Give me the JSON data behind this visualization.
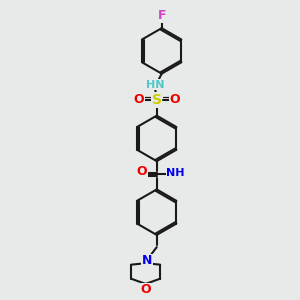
{
  "bg_color": "#e8eaea",
  "bond_color": "#1a1a1a",
  "bond_width": 1.5,
  "atom_colors": {
    "N_nh": "#4ec8c8",
    "N_blue": "#0000ee",
    "O": "#ee0000",
    "S": "#cccc00",
    "F": "#cc44cc"
  },
  "font_size": 8.5,
  "ring_r": 0.78
}
